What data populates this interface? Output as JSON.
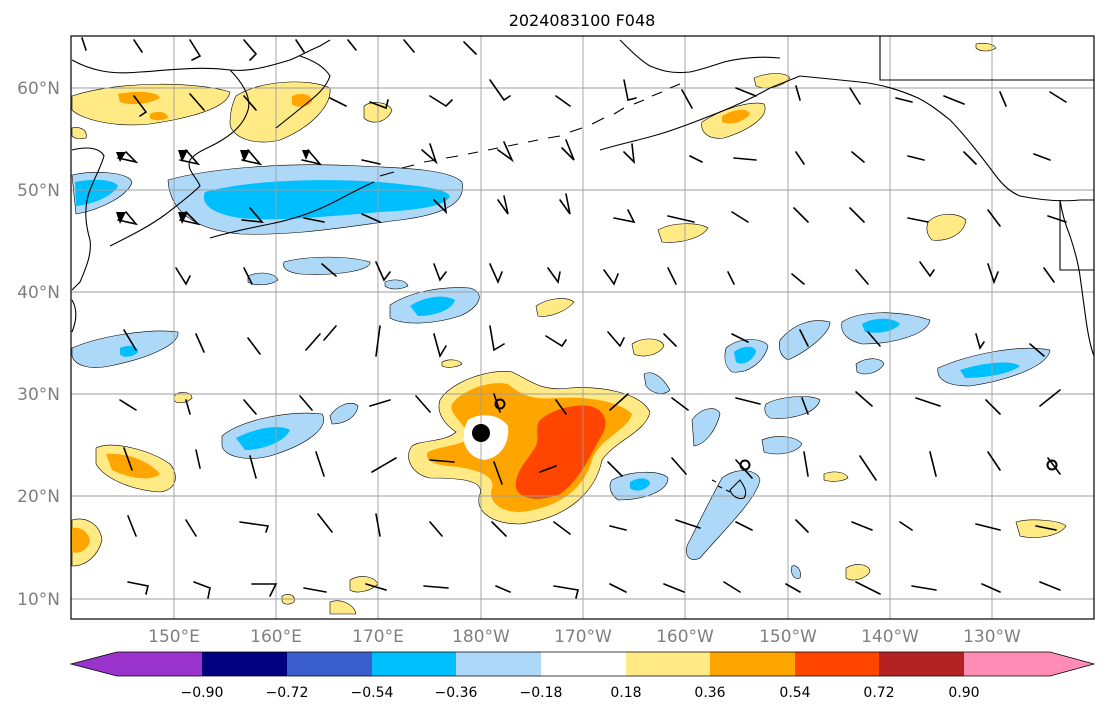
{
  "title": "2024083100 F048",
  "map": {
    "lat_labels": [
      "60°N",
      "50°N",
      "40°N",
      "30°N",
      "20°N",
      "10°N"
    ],
    "lon_labels": [
      "150°E",
      "160°E",
      "170°E",
      "180°W",
      "170°W",
      "160°W",
      "150°W",
      "140°W",
      "130°W"
    ]
  },
  "colorbar": {
    "labels": [
      "−0.90",
      "−0.72",
      "−0.54",
      "−0.36",
      "−0.18",
      "0.18",
      "0.36",
      "0.54",
      "0.72",
      "0.90"
    ],
    "colors": [
      "#9933cc",
      "#000080",
      "#3a5fcd",
      "#00bfff",
      "#add8f7",
      "#ffffff",
      "#ffea85",
      "#ffa500",
      "#ff4500",
      "#b22222",
      "#ff8cb4"
    ]
  },
  "colors": {
    "pos1": "#ffea85",
    "pos2": "#ffa500",
    "pos3": "#ff4500",
    "neg1": "#add8f7",
    "neg2": "#00bfff"
  }
}
